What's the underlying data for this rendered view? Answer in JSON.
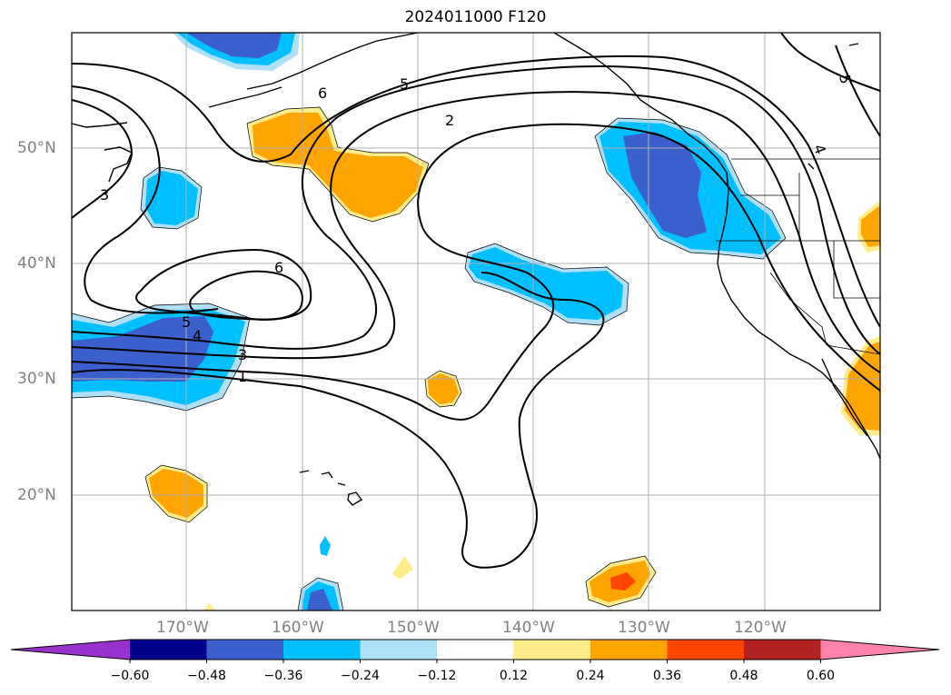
{
  "title": "2024011000 F120",
  "lat_labels": [
    "50°N",
    "40°N",
    "30°N",
    "20°N"
  ],
  "lon_labels": [
    "170°W",
    "160°W",
    "150°W",
    "140°W",
    "130°W",
    "120°W"
  ],
  "contour_labels": [
    "3",
    "6",
    "5",
    "2",
    "6",
    "5",
    "4",
    "3",
    "1",
    "5",
    "4"
  ],
  "colorbar": {
    "ticks": [
      "−0.60",
      "−0.48",
      "−0.36",
      "−0.24",
      "−0.12",
      "0.12",
      "0.24",
      "0.36",
      "0.48",
      "0.60"
    ],
    "colors": [
      "#9932cc",
      "#00008b",
      "#3b5fcd",
      "#00bfff",
      "#afe0f8",
      "#ffffff",
      "#ffec8b",
      "#ffa500",
      "#ff4500",
      "#b22222",
      "#ff82ab"
    ]
  },
  "colors": {
    "neg_strong": "#3b5fcd",
    "neg": "#00bfff",
    "neg_weak": "#afe0f8",
    "pos_weak": "#ffec8b",
    "pos": "#ffa500",
    "pos_strong": "#ff4500"
  }
}
